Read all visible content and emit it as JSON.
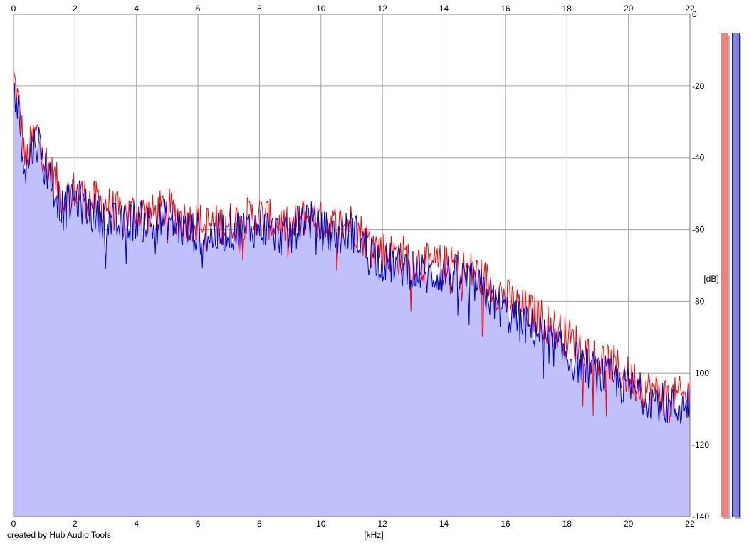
{
  "credit": "created by Hub Audio Tools",
  "chart_data": {
    "type": "area",
    "xlabel": "[kHz]",
    "ylabel": "[dB]",
    "xlim": [
      0,
      22
    ],
    "ylim": [
      -140,
      0
    ],
    "x_ticks": [
      0,
      2,
      4,
      6,
      8,
      10,
      12,
      14,
      16,
      18,
      20,
      22
    ],
    "y_ticks": [
      0,
      -20,
      -40,
      -60,
      -80,
      -100,
      -120,
      -140
    ],
    "grid": true,
    "fill_color": "#c0c0fc",
    "series": [
      {
        "color": "#ff0000",
        "x": [
          0.0,
          0.2,
          0.4,
          0.6,
          0.8,
          1.0,
          1.2,
          1.4,
          1.6,
          1.8,
          2.0,
          2.5,
          3.0,
          3.5,
          4.0,
          4.5,
          5.0,
          5.5,
          6.0,
          6.5,
          7.0,
          7.5,
          8.0,
          8.5,
          9.0,
          9.5,
          10.0,
          10.5,
          11.0,
          11.5,
          12.0,
          12.5,
          13.0,
          13.5,
          14.0,
          14.5,
          15.0,
          15.5,
          16.0,
          16.5,
          17.0,
          17.5,
          18.0,
          18.5,
          19.0,
          19.5,
          20.0,
          20.5,
          21.0,
          21.5,
          22.0
        ],
        "values": [
          -17,
          -27,
          -42,
          -35,
          -33,
          -40,
          -44,
          -47,
          -52,
          -50,
          -49,
          -52,
          -53,
          -56,
          -55,
          -56,
          -54,
          -57,
          -58,
          -59,
          -58,
          -57,
          -56,
          -58,
          -60,
          -56,
          -58,
          -59,
          -58,
          -63,
          -66,
          -67,
          -68,
          -70,
          -70,
          -71,
          -72,
          -75,
          -79,
          -82,
          -84,
          -87,
          -90,
          -93,
          -96,
          -98,
          -101,
          -104,
          -106,
          -107,
          -106
        ]
      },
      {
        "color": "#0000c8",
        "x": [
          0.0,
          0.2,
          0.4,
          0.6,
          0.8,
          1.0,
          1.2,
          1.4,
          1.6,
          1.8,
          2.0,
          2.5,
          3.0,
          3.5,
          4.0,
          4.5,
          5.0,
          5.5,
          6.0,
          6.5,
          7.0,
          7.5,
          8.0,
          8.5,
          9.0,
          9.5,
          10.0,
          10.5,
          11.0,
          11.5,
          12.0,
          12.5,
          13.0,
          13.5,
          14.0,
          14.5,
          15.0,
          15.5,
          16.0,
          16.5,
          17.0,
          17.5,
          18.0,
          18.5,
          19.0,
          19.5,
          20.0,
          20.5,
          21.0,
          21.5,
          22.0
        ],
        "values": [
          -20,
          -30,
          -44,
          -37,
          -35,
          -42,
          -46,
          -50,
          -55,
          -53,
          -51,
          -55,
          -57,
          -59,
          -57,
          -59,
          -57,
          -60,
          -61,
          -62,
          -60,
          -60,
          -59,
          -61,
          -62,
          -56,
          -60,
          -62,
          -60,
          -65,
          -69,
          -70,
          -71,
          -73,
          -72,
          -73,
          -75,
          -79,
          -83,
          -86,
          -88,
          -92,
          -95,
          -98,
          -100,
          -102,
          -104,
          -106,
          -108,
          -110,
          -108
        ]
      }
    ],
    "level_meters": [
      {
        "color": "#f08080"
      },
      {
        "color": "#8080f0"
      }
    ]
  }
}
